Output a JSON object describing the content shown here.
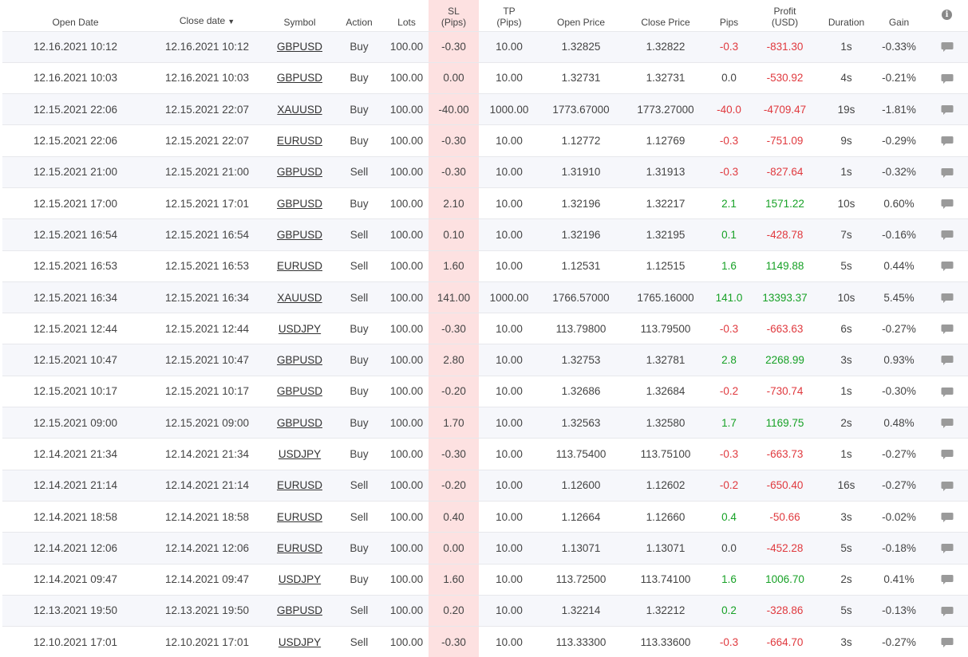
{
  "headers": {
    "open_date": "Open Date",
    "close_date": "Close date",
    "close_sort_arrow": "▼",
    "symbol": "Symbol",
    "action": "Action",
    "lots": "Lots",
    "sl_line1": "SL",
    "sl_line2": "(Pips)",
    "tp_line1": "TP",
    "tp_line2": "(Pips)",
    "open_price": "Open Price",
    "close_price": "Close Price",
    "pips": "Pips",
    "profit_line1": "Profit",
    "profit_line2": "(USD)",
    "duration": "Duration",
    "gain": "Gain",
    "info_icon": "info-icon"
  },
  "colors": {
    "negative": "#e0393e",
    "positive": "#17a126",
    "sl_highlight": "#fde1e1",
    "stripe": "#f6f7fb"
  },
  "rows": [
    {
      "open": "12.16.2021 10:12",
      "close": "12.16.2021 10:12",
      "symbol": "GBPUSD",
      "action": "Buy",
      "lots": "100.00",
      "sl": "-0.30",
      "tp": "10.00",
      "open_price": "1.32825",
      "close_price": "1.32822",
      "pips": "-0.3",
      "profit": "-831.30",
      "duration": "1s",
      "gain": "-0.33%"
    },
    {
      "open": "12.16.2021 10:03",
      "close": "12.16.2021 10:03",
      "symbol": "GBPUSD",
      "action": "Buy",
      "lots": "100.00",
      "sl": "0.00",
      "tp": "10.00",
      "open_price": "1.32731",
      "close_price": "1.32731",
      "pips": "0.0",
      "profit": "-530.92",
      "duration": "4s",
      "gain": "-0.21%"
    },
    {
      "open": "12.15.2021 22:06",
      "close": "12.15.2021 22:07",
      "symbol": "XAUUSD",
      "action": "Buy",
      "lots": "100.00",
      "sl": "-40.00",
      "tp": "1000.00",
      "open_price": "1773.67000",
      "close_price": "1773.27000",
      "pips": "-40.0",
      "profit": "-4709.47",
      "duration": "19s",
      "gain": "-1.81%"
    },
    {
      "open": "12.15.2021 22:06",
      "close": "12.15.2021 22:07",
      "symbol": "EURUSD",
      "action": "Buy",
      "lots": "100.00",
      "sl": "-0.30",
      "tp": "10.00",
      "open_price": "1.12772",
      "close_price": "1.12769",
      "pips": "-0.3",
      "profit": "-751.09",
      "duration": "9s",
      "gain": "-0.29%"
    },
    {
      "open": "12.15.2021 21:00",
      "close": "12.15.2021 21:00",
      "symbol": "GBPUSD",
      "action": "Sell",
      "lots": "100.00",
      "sl": "-0.30",
      "tp": "10.00",
      "open_price": "1.31910",
      "close_price": "1.31913",
      "pips": "-0.3",
      "profit": "-827.64",
      "duration": "1s",
      "gain": "-0.32%"
    },
    {
      "open": "12.15.2021 17:00",
      "close": "12.15.2021 17:01",
      "symbol": "GBPUSD",
      "action": "Buy",
      "lots": "100.00",
      "sl": "2.10",
      "tp": "10.00",
      "open_price": "1.32196",
      "close_price": "1.32217",
      "pips": "2.1",
      "profit": "1571.22",
      "duration": "10s",
      "gain": "0.60%"
    },
    {
      "open": "12.15.2021 16:54",
      "close": "12.15.2021 16:54",
      "symbol": "GBPUSD",
      "action": "Sell",
      "lots": "100.00",
      "sl": "0.10",
      "tp": "10.00",
      "open_price": "1.32196",
      "close_price": "1.32195",
      "pips": "0.1",
      "profit": "-428.78",
      "duration": "7s",
      "gain": "-0.16%"
    },
    {
      "open": "12.15.2021 16:53",
      "close": "12.15.2021 16:53",
      "symbol": "EURUSD",
      "action": "Sell",
      "lots": "100.00",
      "sl": "1.60",
      "tp": "10.00",
      "open_price": "1.12531",
      "close_price": "1.12515",
      "pips": "1.6",
      "profit": "1149.88",
      "duration": "5s",
      "gain": "0.44%"
    },
    {
      "open": "12.15.2021 16:34",
      "close": "12.15.2021 16:34",
      "symbol": "XAUUSD",
      "action": "Sell",
      "lots": "100.00",
      "sl": "141.00",
      "tp": "1000.00",
      "open_price": "1766.57000",
      "close_price": "1765.16000",
      "pips": "141.0",
      "profit": "13393.37",
      "duration": "10s",
      "gain": "5.45%"
    },
    {
      "open": "12.15.2021 12:44",
      "close": "12.15.2021 12:44",
      "symbol": "USDJPY",
      "action": "Buy",
      "lots": "100.00",
      "sl": "-0.30",
      "tp": "10.00",
      "open_price": "113.79800",
      "close_price": "113.79500",
      "pips": "-0.3",
      "profit": "-663.63",
      "duration": "6s",
      "gain": "-0.27%"
    },
    {
      "open": "12.15.2021 10:47",
      "close": "12.15.2021 10:47",
      "symbol": "GBPUSD",
      "action": "Buy",
      "lots": "100.00",
      "sl": "2.80",
      "tp": "10.00",
      "open_price": "1.32753",
      "close_price": "1.32781",
      "pips": "2.8",
      "profit": "2268.99",
      "duration": "3s",
      "gain": "0.93%"
    },
    {
      "open": "12.15.2021 10:17",
      "close": "12.15.2021 10:17",
      "symbol": "GBPUSD",
      "action": "Buy",
      "lots": "100.00",
      "sl": "-0.20",
      "tp": "10.00",
      "open_price": "1.32686",
      "close_price": "1.32684",
      "pips": "-0.2",
      "profit": "-730.74",
      "duration": "1s",
      "gain": "-0.30%"
    },
    {
      "open": "12.15.2021 09:00",
      "close": "12.15.2021 09:00",
      "symbol": "GBPUSD",
      "action": "Buy",
      "lots": "100.00",
      "sl": "1.70",
      "tp": "10.00",
      "open_price": "1.32563",
      "close_price": "1.32580",
      "pips": "1.7",
      "profit": "1169.75",
      "duration": "2s",
      "gain": "0.48%"
    },
    {
      "open": "12.14.2021 21:34",
      "close": "12.14.2021 21:34",
      "symbol": "USDJPY",
      "action": "Buy",
      "lots": "100.00",
      "sl": "-0.30",
      "tp": "10.00",
      "open_price": "113.75400",
      "close_price": "113.75100",
      "pips": "-0.3",
      "profit": "-663.73",
      "duration": "1s",
      "gain": "-0.27%"
    },
    {
      "open": "12.14.2021 21:14",
      "close": "12.14.2021 21:14",
      "symbol": "EURUSD",
      "action": "Sell",
      "lots": "100.00",
      "sl": "-0.20",
      "tp": "10.00",
      "open_price": "1.12600",
      "close_price": "1.12602",
      "pips": "-0.2",
      "profit": "-650.40",
      "duration": "16s",
      "gain": "-0.27%"
    },
    {
      "open": "12.14.2021 18:58",
      "close": "12.14.2021 18:58",
      "symbol": "EURUSD",
      "action": "Sell",
      "lots": "100.00",
      "sl": "0.40",
      "tp": "10.00",
      "open_price": "1.12664",
      "close_price": "1.12660",
      "pips": "0.4",
      "profit": "-50.66",
      "duration": "3s",
      "gain": "-0.02%"
    },
    {
      "open": "12.14.2021 12:06",
      "close": "12.14.2021 12:06",
      "symbol": "EURUSD",
      "action": "Buy",
      "lots": "100.00",
      "sl": "0.00",
      "tp": "10.00",
      "open_price": "1.13071",
      "close_price": "1.13071",
      "pips": "0.0",
      "profit": "-452.28",
      "duration": "5s",
      "gain": "-0.18%"
    },
    {
      "open": "12.14.2021 09:47",
      "close": "12.14.2021 09:47",
      "symbol": "USDJPY",
      "action": "Buy",
      "lots": "100.00",
      "sl": "1.60",
      "tp": "10.00",
      "open_price": "113.72500",
      "close_price": "113.74100",
      "pips": "1.6",
      "profit": "1006.70",
      "duration": "2s",
      "gain": "0.41%"
    },
    {
      "open": "12.13.2021 19:50",
      "close": "12.13.2021 19:50",
      "symbol": "GBPUSD",
      "action": "Sell",
      "lots": "100.00",
      "sl": "0.20",
      "tp": "10.00",
      "open_price": "1.32214",
      "close_price": "1.32212",
      "pips": "0.2",
      "profit": "-328.86",
      "duration": "5s",
      "gain": "-0.13%"
    },
    {
      "open": "12.10.2021 17:01",
      "close": "12.10.2021 17:01",
      "symbol": "USDJPY",
      "action": "Sell",
      "lots": "100.00",
      "sl": "-0.30",
      "tp": "10.00",
      "open_price": "113.33300",
      "close_price": "113.33600",
      "pips": "-0.3",
      "profit": "-664.70",
      "duration": "3s",
      "gain": "-0.27%"
    }
  ]
}
